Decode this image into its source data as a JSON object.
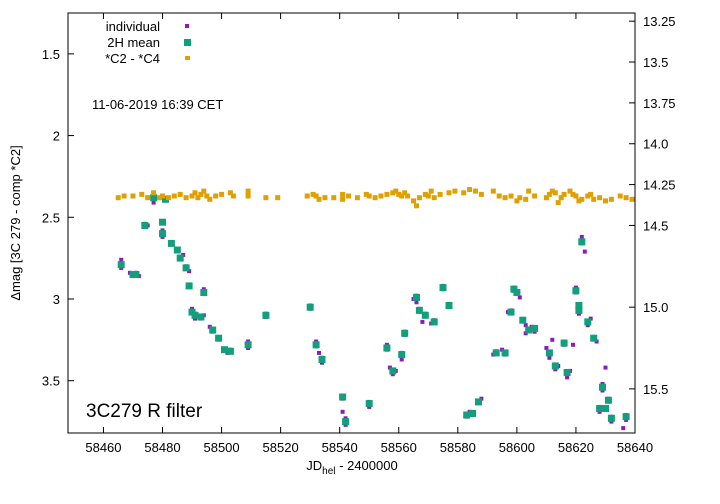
{
  "chart_data": {
    "type": "scatter",
    "xlabel_main": "JD",
    "xlabel_sub": "hel",
    "xlabel_tail": " - 2400000",
    "ylabel": "Δmag [3C 279 - comp *C2]",
    "annotation_date": "11-06-2019  16:39 CET",
    "annotation_target": "3C279   R filter",
    "xlim": [
      58448,
      58640
    ],
    "ylim_inverted": [
      1.25,
      3.82
    ],
    "y2lim_inverted": [
      13.2,
      15.77
    ],
    "x_ticks": [
      58460,
      58480,
      58500,
      58520,
      58540,
      58560,
      58580,
      58600,
      58620,
      58640
    ],
    "y_ticks": [
      1.5,
      2,
      2.5,
      3,
      3.5
    ],
    "y_tick_labels": [
      "1.5",
      "2",
      "2.5",
      "3",
      "3.5"
    ],
    "y2_ticks": [
      13.25,
      13.5,
      13.75,
      14.0,
      14.25,
      14.5,
      15.0,
      15.5
    ],
    "y2_tick_labels": [
      "13.25",
      "13.5",
      "13.75",
      "14.0",
      "14.25",
      "14.5",
      "15.0",
      "15.5"
    ],
    "legend_position": "top-left",
    "grid": false,
    "series": [
      {
        "name": "individual",
        "color": "#8b1bbf",
        "marker": "small-square",
        "points": [
          [
            58466,
            2.76
          ],
          [
            58466,
            2.79
          ],
          [
            58466,
            2.81
          ],
          [
            58469,
            2.84
          ],
          [
            58470,
            2.86
          ],
          [
            58471,
            2.84
          ],
          [
            58472,
            2.86
          ],
          [
            58474,
            2.54
          ],
          [
            58475,
            2.55
          ],
          [
            58477,
            2.37
          ],
          [
            58477,
            2.39
          ],
          [
            58477,
            2.41
          ],
          [
            58480,
            2.58
          ],
          [
            58480,
            2.6
          ],
          [
            58480,
            2.62
          ],
          [
            58481,
            2.39
          ],
          [
            58483,
            2.66
          ],
          [
            58485,
            2.7
          ],
          [
            58486,
            2.74
          ],
          [
            58487,
            2.73
          ],
          [
            58488,
            2.8
          ],
          [
            58489,
            2.83
          ],
          [
            58490,
            3.06
          ],
          [
            58491,
            3.09
          ],
          [
            58491,
            3.12
          ],
          [
            58493,
            3.12
          ],
          [
            58494,
            3.1
          ],
          [
            58494,
            2.94
          ],
          [
            58494,
            2.97
          ],
          [
            58496,
            3.17
          ],
          [
            58497,
            3.2
          ],
          [
            58499,
            3.24
          ],
          [
            58501,
            3.31
          ],
          [
            58502,
            3.33
          ],
          [
            58503,
            3.31
          ],
          [
            58509,
            3.26
          ],
          [
            58509,
            3.3
          ],
          [
            58515,
            3.09
          ],
          [
            58515,
            3.11
          ],
          [
            58530,
            3.04
          ],
          [
            58530,
            3.06
          ],
          [
            58532,
            3.26
          ],
          [
            58532,
            3.29
          ],
          [
            58533,
            3.33
          ],
          [
            58534,
            3.36
          ],
          [
            58534,
            3.39
          ],
          [
            58541,
            3.61
          ],
          [
            58541,
            3.69
          ],
          [
            58542,
            3.73
          ],
          [
            58542,
            3.77
          ],
          [
            58550,
            3.63
          ],
          [
            58550,
            3.66
          ],
          [
            58556,
            3.28
          ],
          [
            58556,
            3.31
          ],
          [
            58557,
            3.42
          ],
          [
            58558,
            3.46
          ],
          [
            58559,
            3.44
          ],
          [
            58561,
            3.33
          ],
          [
            58561,
            3.37
          ],
          [
            58562,
            3.22
          ],
          [
            58562,
            3.2
          ],
          [
            58565,
            3.0
          ],
          [
            58566,
            2.98
          ],
          [
            58566,
            3.02
          ],
          [
            58567,
            3.06
          ],
          [
            58568,
            3.14
          ],
          [
            58569,
            3.09
          ],
          [
            58571,
            3.15
          ],
          [
            58572,
            3.13
          ],
          [
            58575,
            2.92
          ],
          [
            58575,
            2.94
          ],
          [
            58577,
            3.05
          ],
          [
            58577,
            3.03
          ],
          [
            58583,
            3.72
          ],
          [
            58584,
            3.69
          ],
          [
            58585,
            3.71
          ],
          [
            58587,
            3.63
          ],
          [
            58588,
            3.61
          ],
          [
            58592,
            3.34
          ],
          [
            58593,
            3.32
          ],
          [
            58595,
            3.31
          ],
          [
            58596,
            3.34
          ],
          [
            58597,
            3.08
          ],
          [
            58598,
            3.07
          ],
          [
            58599,
            2.93
          ],
          [
            58599,
            2.95
          ],
          [
            58601,
            2.99
          ],
          [
            58602,
            3.13
          ],
          [
            58603,
            3.16
          ],
          [
            58603,
            3.21
          ],
          [
            58604,
            3.19
          ],
          [
            58605,
            3.17
          ],
          [
            58606,
            3.2
          ],
          [
            58610,
            3.3
          ],
          [
            58611,
            3.34
          ],
          [
            58611,
            3.36
          ],
          [
            58612,
            3.25
          ],
          [
            58613,
            3.4
          ],
          [
            58613,
            3.43
          ],
          [
            58614,
            3.41
          ],
          [
            58616,
            3.28
          ],
          [
            58616,
            3.26
          ],
          [
            58617,
            3.46
          ],
          [
            58617,
            3.48
          ],
          [
            58618,
            3.44
          ],
          [
            58619,
            3.28
          ],
          [
            58620,
            2.93
          ],
          [
            58620,
            2.96
          ],
          [
            58621,
            3.06
          ],
          [
            58621,
            3.09
          ],
          [
            58622,
            2.62
          ],
          [
            58622,
            2.66
          ],
          [
            58623,
            2.71
          ],
          [
            58624,
            3.16
          ],
          [
            58625,
            3.12
          ],
          [
            58626,
            3.24
          ],
          [
            58627,
            3.26
          ],
          [
            58628,
            3.66
          ],
          [
            58628,
            3.69
          ],
          [
            58629,
            3.56
          ],
          [
            58629,
            3.52
          ],
          [
            58630,
            3.42
          ],
          [
            58631,
            3.61
          ],
          [
            58632,
            3.72
          ],
          [
            58632,
            3.75
          ],
          [
            58636,
            3.79
          ],
          [
            58637,
            3.71
          ],
          [
            58637,
            3.74
          ]
        ]
      },
      {
        "name": "2H mean",
        "color": "#12a07c",
        "marker": "square",
        "points": [
          [
            58466,
            2.79
          ],
          [
            58470,
            2.85
          ],
          [
            58471,
            2.85
          ],
          [
            58474,
            2.55
          ],
          [
            58477,
            2.38
          ],
          [
            58480,
            2.53
          ],
          [
            58480,
            2.6
          ],
          [
            58481,
            2.39
          ],
          [
            58483,
            2.66
          ],
          [
            58485,
            2.7
          ],
          [
            58486,
            2.75
          ],
          [
            58488,
            2.81
          ],
          [
            58489,
            2.92
          ],
          [
            58490,
            3.08
          ],
          [
            58491,
            3.1
          ],
          [
            58493,
            3.11
          ],
          [
            58494,
            2.96
          ],
          [
            58497,
            3.19
          ],
          [
            58499,
            3.24
          ],
          [
            58501,
            3.31
          ],
          [
            58503,
            3.32
          ],
          [
            58509,
            3.28
          ],
          [
            58515,
            3.1
          ],
          [
            58530,
            3.05
          ],
          [
            58532,
            3.28
          ],
          [
            58534,
            3.37
          ],
          [
            58541,
            3.6
          ],
          [
            58542,
            3.75
          ],
          [
            58550,
            3.64
          ],
          [
            58556,
            3.3
          ],
          [
            58558,
            3.44
          ],
          [
            58561,
            3.34
          ],
          [
            58562,
            3.21
          ],
          [
            58566,
            2.99
          ],
          [
            58567,
            3.07
          ],
          [
            58569,
            3.1
          ],
          [
            58572,
            3.14
          ],
          [
            58575,
            2.93
          ],
          [
            58577,
            3.04
          ],
          [
            58583,
            3.71
          ],
          [
            58585,
            3.7
          ],
          [
            58587,
            3.63
          ],
          [
            58593,
            3.33
          ],
          [
            58596,
            3.33
          ],
          [
            58598,
            3.08
          ],
          [
            58599,
            2.94
          ],
          [
            58600,
            2.96
          ],
          [
            58602,
            3.13
          ],
          [
            58604,
            3.19
          ],
          [
            58606,
            3.18
          ],
          [
            58611,
            3.33
          ],
          [
            58613,
            3.41
          ],
          [
            58616,
            3.27
          ],
          [
            58617,
            3.45
          ],
          [
            58620,
            2.95
          ],
          [
            58621,
            3.07
          ],
          [
            58621,
            3.04
          ],
          [
            58622,
            2.65
          ],
          [
            58624,
            3.14
          ],
          [
            58626,
            3.24
          ],
          [
            58628,
            3.67
          ],
          [
            58629,
            3.54
          ],
          [
            58630,
            3.67
          ],
          [
            58631,
            3.62
          ],
          [
            58632,
            3.73
          ],
          [
            58637,
            3.72
          ]
        ]
      },
      {
        "name": "*C2 - *C4",
        "color": "#e0a000",
        "marker": "small-square",
        "points": [
          [
            58465,
            2.38
          ],
          [
            58467,
            2.37
          ],
          [
            58470,
            2.37
          ],
          [
            58473,
            2.36
          ],
          [
            58475,
            2.38
          ],
          [
            58477,
            2.35
          ],
          [
            58479,
            2.38
          ],
          [
            58480,
            2.37
          ],
          [
            58482,
            2.38
          ],
          [
            58484,
            2.37
          ],
          [
            58486,
            2.36
          ],
          [
            58488,
            2.38
          ],
          [
            58490,
            2.37
          ],
          [
            58491,
            2.35
          ],
          [
            58492,
            2.38
          ],
          [
            58493,
            2.36
          ],
          [
            58494,
            2.34
          ],
          [
            58495,
            2.37
          ],
          [
            58496,
            2.39
          ],
          [
            58498,
            2.37
          ],
          [
            58500,
            2.36
          ],
          [
            58503,
            2.35
          ],
          [
            58504,
            2.37
          ],
          [
            58509,
            2.37
          ],
          [
            58509,
            2.34
          ],
          [
            58515,
            2.38
          ],
          [
            58519,
            2.38
          ],
          [
            58529,
            2.37
          ],
          [
            58531,
            2.36
          ],
          [
            58532,
            2.37
          ],
          [
            58533,
            2.39
          ],
          [
            58535,
            2.38
          ],
          [
            58538,
            2.38
          ],
          [
            58541,
            2.36
          ],
          [
            58541,
            2.39
          ],
          [
            58543,
            2.37
          ],
          [
            58546,
            2.38
          ],
          [
            58549,
            2.36
          ],
          [
            58550,
            2.37
          ],
          [
            58552,
            2.38
          ],
          [
            58554,
            2.37
          ],
          [
            58556,
            2.36
          ],
          [
            58558,
            2.35
          ],
          [
            58559,
            2.34
          ],
          [
            58560,
            2.36
          ],
          [
            58561,
            2.37
          ],
          [
            58562,
            2.35
          ],
          [
            58563,
            2.37
          ],
          [
            58565,
            2.4
          ],
          [
            58566,
            2.43
          ],
          [
            58567,
            2.38
          ],
          [
            58569,
            2.36
          ],
          [
            58570,
            2.37
          ],
          [
            58571,
            2.34
          ],
          [
            58572,
            2.38
          ],
          [
            58574,
            2.36
          ],
          [
            58577,
            2.35
          ],
          [
            58579,
            2.34
          ],
          [
            58582,
            2.35
          ],
          [
            58584,
            2.33
          ],
          [
            58586,
            2.34
          ],
          [
            58588,
            2.36
          ],
          [
            58592,
            2.34
          ],
          [
            58594,
            2.37
          ],
          [
            58596,
            2.38
          ],
          [
            58598,
            2.37
          ],
          [
            58600,
            2.4
          ],
          [
            58601,
            2.38
          ],
          [
            58603,
            2.39
          ],
          [
            58604,
            2.34
          ],
          [
            58606,
            2.37
          ],
          [
            58610,
            2.38
          ],
          [
            58611,
            2.36
          ],
          [
            58612,
            2.34
          ],
          [
            58613,
            2.35
          ],
          [
            58614,
            2.41
          ],
          [
            58615,
            2.38
          ],
          [
            58616,
            2.36
          ],
          [
            58618,
            2.34
          ],
          [
            58619,
            2.36
          ],
          [
            58620,
            2.37
          ],
          [
            58621,
            2.4
          ],
          [
            58622,
            2.39
          ],
          [
            58624,
            2.37
          ],
          [
            58625,
            2.36
          ],
          [
            58626,
            2.39
          ],
          [
            58628,
            2.38
          ],
          [
            58630,
            2.4
          ],
          [
            58632,
            2.39
          ],
          [
            58635,
            2.37
          ],
          [
            58637,
            2.38
          ],
          [
            58639,
            2.39
          ]
        ]
      }
    ]
  }
}
